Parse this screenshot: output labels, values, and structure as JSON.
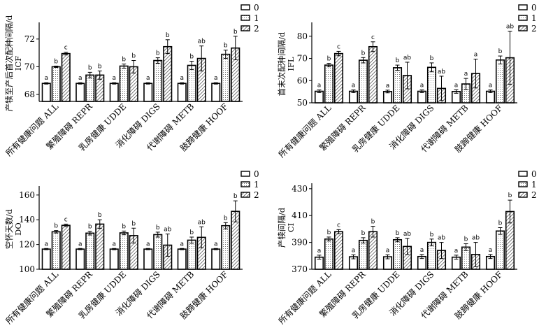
{
  "legend": {
    "labels": [
      "0",
      "1",
      "2"
    ]
  },
  "patterns": {
    "0": "blank",
    "1": "dots",
    "2": "diagonal-hatch"
  },
  "colors": {
    "bar_stroke": "#000000",
    "bar_fill": "#ffffff",
    "pattern_ink": "#444444",
    "error_bar": "#000000"
  },
  "chart_data": [
    {
      "type": "bar",
      "ylabel": "产犊至产后首次配种间隔/d",
      "ylabel_abbr": "ICF",
      "categories": [
        "所有健康问题 ALL",
        "繁殖障碍 REPR",
        "乳房健康 UDDE",
        "消化障碍 DIGS",
        "代谢障碍 METB",
        "肢蹄健康 HOOF"
      ],
      "ylim": [
        67.5,
        73
      ],
      "yticks": [
        68,
        70,
        72
      ],
      "series": [
        {
          "name": "0",
          "values": [
            68.8,
            68.8,
            68.8,
            68.8,
            68.8,
            68.8
          ],
          "errors": [
            0.05,
            0.05,
            0.05,
            0.05,
            0.05,
            0.05
          ],
          "letters": [
            "a",
            "a",
            "a",
            "a",
            "a",
            "a"
          ]
        },
        {
          "name": "1",
          "values": [
            70.0,
            69.4,
            70.05,
            70.45,
            70.1,
            70.9
          ],
          "errors": [
            0.05,
            0.2,
            0.15,
            0.2,
            0.3,
            0.3
          ],
          "letters": [
            "b",
            "b",
            "b",
            "b",
            "b",
            "b"
          ]
        },
        {
          "name": "2",
          "values": [
            70.95,
            69.4,
            70.0,
            71.45,
            70.6,
            71.35
          ],
          "errors": [
            0.1,
            0.3,
            0.45,
            0.5,
            0.9,
            0.85
          ],
          "letters": [
            "c",
            "b",
            "b",
            "b",
            "ab",
            "b"
          ]
        }
      ]
    },
    {
      "type": "bar",
      "ylabel": "首末次配种间隔/d",
      "ylabel_abbr": "IFL",
      "categories": [
        "所有健康问题 ALL",
        "繁殖障碍 REPR",
        "乳房健康 UDDE",
        "消化障碍 DIGS",
        "代谢障碍 METB",
        "肢蹄健康 HOOF"
      ],
      "ylim": [
        50,
        85
      ],
      "yticks": [
        50,
        60,
        70,
        80
      ],
      "series": [
        {
          "name": "0",
          "values": [
            55.2,
            55.2,
            55.1,
            55.2,
            55.1,
            55.2
          ],
          "errors": [
            0.6,
            0.6,
            0.6,
            0.6,
            0.8,
            0.6
          ],
          "letters": [
            "a",
            "a",
            "a",
            "a",
            "a",
            "a"
          ]
        },
        {
          "name": "1",
          "values": [
            67.0,
            69.2,
            65.8,
            66.0,
            58.5,
            69.3
          ],
          "errors": [
            0.8,
            1.2,
            1.2,
            2.0,
            2.5,
            1.8
          ],
          "letters": [
            "b",
            "b",
            "b",
            "b",
            "a",
            "b"
          ]
        },
        {
          "name": "2",
          "values": [
            72.2,
            75.3,
            62.3,
            56.5,
            63.2,
            70.3
          ],
          "errors": [
            1.0,
            2.2,
            6.0,
            5.5,
            6.5,
            12.0
          ],
          "letters": [
            "c",
            "c",
            "ab",
            "ab",
            "a",
            "ab"
          ]
        }
      ]
    },
    {
      "type": "bar",
      "ylabel": "空怀天数/d",
      "ylabel_abbr": "DO",
      "categories": [
        "所有健康问题 ALL",
        "繁殖障碍 REPR",
        "乳房健康 UDDE",
        "消化障碍 DIGS",
        "代谢障碍 METB",
        "肢蹄健康 HOOF"
      ],
      "ylim": [
        100,
        165
      ],
      "yticks": [
        100,
        120,
        140,
        160
      ],
      "series": [
        {
          "name": "0",
          "values": [
            116.3,
            116.3,
            116.3,
            116.3,
            116.3,
            116.3
          ],
          "errors": [
            0.5,
            0.5,
            0.5,
            0.5,
            0.5,
            0.5
          ],
          "letters": [
            "a",
            "a",
            "a",
            "a",
            "a",
            "a"
          ]
        },
        {
          "name": "1",
          "values": [
            130.3,
            129.2,
            129.4,
            128.0,
            123.5,
            135.2
          ],
          "errors": [
            1.0,
            1.5,
            1.5,
            2.0,
            2.5,
            2.5
          ],
          "letters": [
            "b",
            "b",
            "b",
            "b",
            "b",
            "b"
          ]
        },
        {
          "name": "2",
          "values": [
            135.5,
            136.5,
            127.2,
            119.5,
            125.8,
            146.8
          ],
          "errors": [
            1.0,
            3.5,
            6.0,
            9.0,
            8.5,
            8.5
          ],
          "letters": [
            "c",
            "b",
            "b",
            "ab",
            "ab",
            "b"
          ]
        }
      ]
    },
    {
      "type": "bar",
      "ylabel": "产犊间隔/d",
      "ylabel_abbr": "CI",
      "categories": [
        "所有健康问题 ALL",
        "繁殖障碍 REPR",
        "乳房健康 UDDE",
        "消化障碍 DIGS",
        "代谢障碍 METB",
        "肢蹄健康 HOOF"
      ],
      "ylim": [
        370,
        432
      ],
      "yticks": [
        370,
        390,
        410,
        430
      ],
      "series": [
        {
          "name": "0",
          "values": [
            379.0,
            379.3,
            379.3,
            379.5,
            379.0,
            379.5
          ],
          "errors": [
            1.5,
            1.5,
            1.5,
            1.5,
            1.5,
            1.5
          ],
          "letters": [
            "a",
            "a",
            "a",
            "a",
            "a",
            "a"
          ]
        },
        {
          "name": "1",
          "values": [
            392.5,
            391.5,
            392.0,
            390.0,
            386.5,
            398.5
          ],
          "errors": [
            1.5,
            2.0,
            1.5,
            2.5,
            2.5,
            2.5
          ],
          "letters": [
            "b",
            "b",
            "b",
            "b",
            "b",
            "b"
          ]
        },
        {
          "name": "2",
          "values": [
            398.0,
            398.0,
            387.0,
            384.0,
            381.0,
            413.0
          ],
          "errors": [
            1.5,
            4.0,
            6.0,
            6.0,
            9.0,
            8.5
          ],
          "letters": [
            "c",
            "b",
            "ab",
            "ab",
            "ab",
            "b"
          ]
        }
      ]
    }
  ]
}
